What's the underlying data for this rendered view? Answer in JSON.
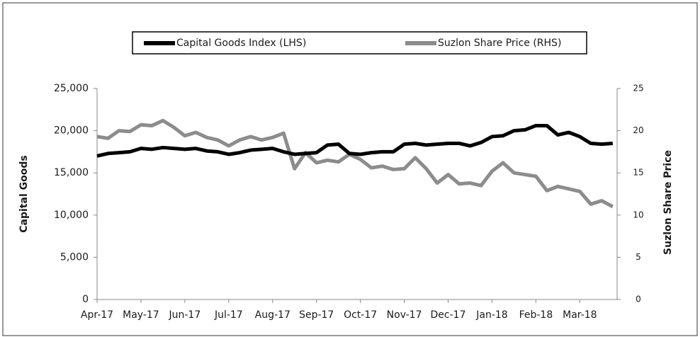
{
  "chart_data": {
    "type": "line",
    "categories": [
      "Apr-17",
      null,
      null,
      null,
      "May-17",
      null,
      null,
      null,
      "Jun-17",
      null,
      null,
      null,
      "Jul-17",
      null,
      null,
      null,
      "Aug-17",
      null,
      null,
      null,
      "Sep-17",
      null,
      null,
      null,
      "Oct-17",
      null,
      null,
      null,
      "Nov-17",
      null,
      null,
      null,
      "Dec-17",
      null,
      null,
      null,
      "Jan-18",
      null,
      null,
      null,
      "Feb-18",
      null,
      null,
      null,
      "Mar-18",
      null,
      null,
      null
    ],
    "series": [
      {
        "name": "Capital Goods Index (LHS)",
        "color": "#000000",
        "values": [
          17000,
          17300,
          17400,
          17500,
          17900,
          17800,
          18000,
          17900,
          17800,
          17900,
          17600,
          17500,
          17200,
          17400,
          17700,
          17800,
          17900,
          17500,
          17200,
          17300,
          17400,
          18300,
          18400,
          17300,
          17200,
          17400,
          17500,
          17500,
          18400,
          18500,
          18300,
          18400,
          18500,
          18500,
          18200,
          18600,
          19300,
          19400,
          20000,
          20100,
          20600,
          20600,
          19500,
          19800,
          19300,
          18500,
          18400,
          18500
        ]
      },
      {
        "name": "Suzlon Share Price (RHS)",
        "color": "#8c8c8c",
        "axis": "y2",
        "values": [
          19.3,
          19.1,
          20.0,
          19.9,
          20.7,
          20.6,
          21.2,
          20.4,
          19.4,
          19.8,
          19.2,
          18.9,
          18.2,
          18.9,
          19.3,
          18.9,
          19.2,
          19.7,
          15.5,
          17.4,
          16.2,
          16.5,
          16.3,
          17.2,
          16.6,
          15.6,
          15.8,
          15.4,
          15.5,
          16.8,
          15.5,
          13.8,
          14.8,
          13.7,
          13.8,
          13.5,
          15.2,
          16.2,
          15.0,
          14.8,
          14.6,
          12.9,
          13.4,
          13.1,
          12.8,
          11.3,
          11.7,
          11.0
        ]
      }
    ],
    "ylabel": "Capital Goods",
    "y2label": "Suzlon Share Price",
    "ylim": [
      0,
      25000
    ],
    "yticks": [
      0,
      {
        "value": 5000,
        "label": "5,000"
      },
      {
        "value": 10000,
        "label": "10,000"
      },
      {
        "value": 15000,
        "label": "15,000"
      },
      {
        "value": 20000,
        "label": "20,000"
      },
      {
        "value": 25000,
        "label": "25,000"
      }
    ],
    "y2lim": [
      0,
      25
    ],
    "y2ticks": [
      0,
      5,
      10,
      15,
      20,
      25
    ],
    "legend": "top"
  }
}
